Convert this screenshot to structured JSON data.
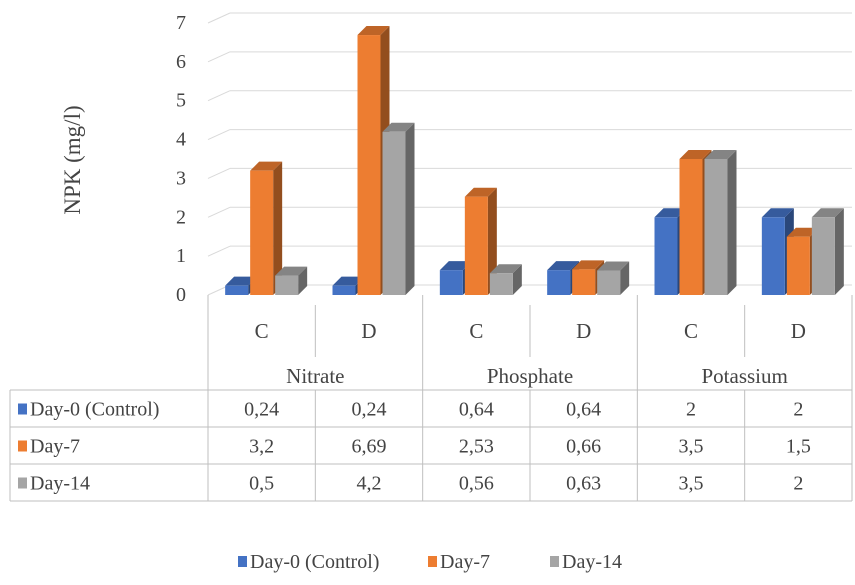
{
  "chart_data": {
    "type": "bar",
    "ylabel": "NPK (mg/l)",
    "ylim": [
      0,
      7
    ],
    "yticks": [
      "0",
      "1",
      "2",
      "3",
      "4",
      "5",
      "6",
      "7"
    ],
    "groups": [
      {
        "name": "Nitrate",
        "categories": [
          "C",
          "D"
        ]
      },
      {
        "name": "Phosphate",
        "categories": [
          "C",
          "D"
        ]
      },
      {
        "name": "Potassium",
        "categories": [
          "C",
          "D"
        ]
      }
    ],
    "series": [
      {
        "name": "Day-0 (Control)",
        "color": "#4472C4",
        "values": [
          0.24,
          0.24,
          0.64,
          0.64,
          2,
          2
        ],
        "labels": [
          "0,24",
          "0,24",
          "0,64",
          "0,64",
          "2",
          "2"
        ]
      },
      {
        "name": "Day-7",
        "color": "#ED7D31",
        "values": [
          3.2,
          6.69,
          2.53,
          0.66,
          3.5,
          1.5
        ],
        "labels": [
          "3,2",
          "6,69",
          "2,53",
          "0,66",
          "3,5",
          "1,5"
        ]
      },
      {
        "name": "Day-14",
        "color": "#A5A5A5",
        "values": [
          0.5,
          4.2,
          0.56,
          0.63,
          3.5,
          2
        ],
        "labels": [
          "0,5",
          "4,2",
          "0,56",
          "0,63",
          "3,5",
          "2"
        ]
      }
    ],
    "grid": true,
    "legend_position": "bottom",
    "data_table": true
  }
}
